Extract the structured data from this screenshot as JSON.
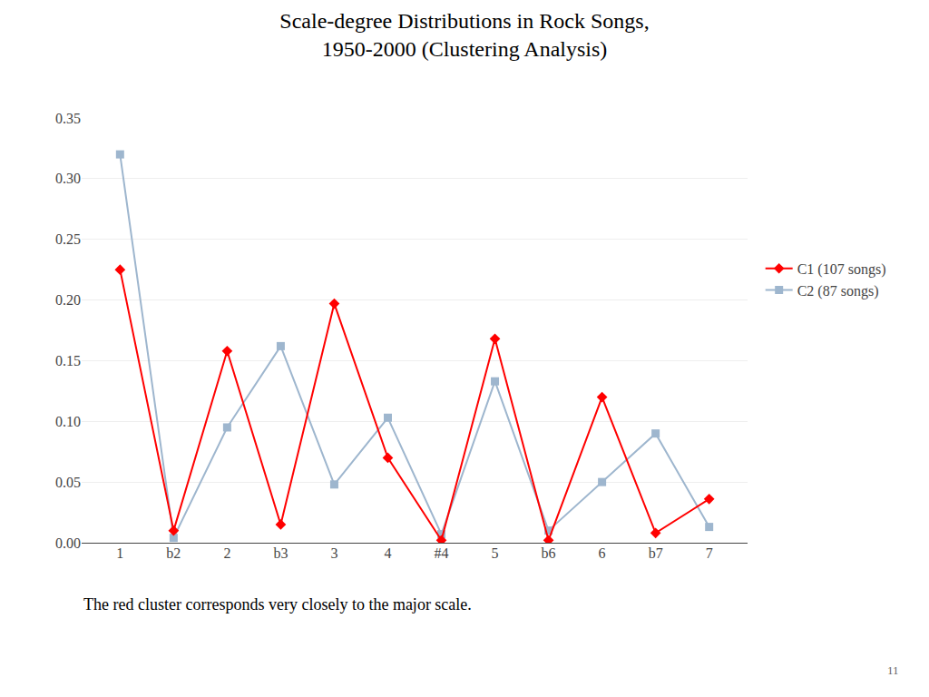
{
  "chart_data": {
    "type": "line",
    "title": "Scale-degree Distributions in Rock Songs,\n1950-2000 (Clustering Analysis)",
    "subtitle": "The red cluster corresponds very closely to the major scale.",
    "annotations": [
      "11"
    ],
    "categories": [
      "1",
      "b2",
      "2",
      "b3",
      "3",
      "4",
      "#4",
      "5",
      "b6",
      "6",
      "b7",
      "7"
    ],
    "series": [
      {
        "name": "C1 (107 songs)",
        "color": "#FF0000",
        "marker": "diamond",
        "line_style": "solid",
        "values": [
          0.225,
          0.01,
          0.158,
          0.015,
          0.197,
          0.07,
          0.002,
          0.168,
          0.002,
          0.12,
          0.008,
          0.036
        ]
      },
      {
        "name": "C2 (87 songs)",
        "color": "#9EB6CE",
        "marker": "square",
        "line_style": "solid",
        "values": [
          0.32,
          0.004,
          0.095,
          0.162,
          0.048,
          0.103,
          0.007,
          0.133,
          0.01,
          0.05,
          0.09,
          0.013
        ]
      }
    ],
    "ylim": [
      0,
      0.35
    ],
    "yticks": [
      {
        "value": 0,
        "label": "0.00"
      },
      0.05,
      {
        "value": 0.1,
        "label": "0.10"
      },
      0.15,
      {
        "value": 0.2,
        "label": "0.20"
      },
      0.25,
      {
        "value": 0.3,
        "label": "0.30"
      },
      0.35
    ],
    "grid": true,
    "legend": "right"
  }
}
